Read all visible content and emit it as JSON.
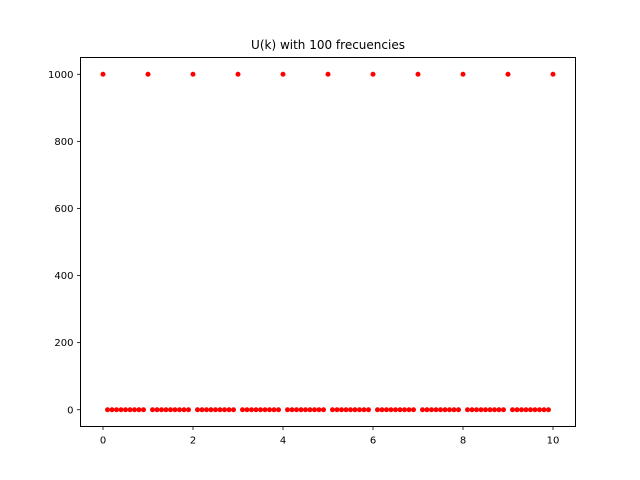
{
  "chart_data": {
    "type": "scatter",
    "title": "U(k) with 100 frecuencies",
    "xlabel": "",
    "ylabel": "",
    "xlim": [
      -0.5,
      10.5
    ],
    "ylim": [
      -50,
      1050
    ],
    "xticks": [
      0,
      2,
      4,
      6,
      8,
      10
    ],
    "yticks": [
      0,
      200,
      400,
      600,
      800,
      1000
    ],
    "grid": false,
    "marker_color": "#ff0000",
    "series": [
      {
        "x": [
          0.0,
          0.1,
          0.2,
          0.3,
          0.4,
          0.5,
          0.6,
          0.7,
          0.8,
          0.9,
          1.0,
          1.1,
          1.2,
          1.3,
          1.4,
          1.5,
          1.6,
          1.7,
          1.8,
          1.9,
          2.0,
          2.1,
          2.2,
          2.3,
          2.4,
          2.5,
          2.6,
          2.7,
          2.8,
          2.9,
          3.0,
          3.1,
          3.2,
          3.3,
          3.4,
          3.5,
          3.6,
          3.7,
          3.8,
          3.9,
          4.0,
          4.1,
          4.2,
          4.3,
          4.4,
          4.5,
          4.6,
          4.7,
          4.8,
          4.9,
          5.0,
          5.1,
          5.2,
          5.3,
          5.4,
          5.5,
          5.6,
          5.7,
          5.8,
          5.9,
          6.0,
          6.1,
          6.2,
          6.3,
          6.4,
          6.5,
          6.6,
          6.7,
          6.8,
          6.9,
          7.0,
          7.1,
          7.2,
          7.3,
          7.4,
          7.5,
          7.6,
          7.7,
          7.8,
          7.9,
          8.0,
          8.1,
          8.2,
          8.3,
          8.4,
          8.5,
          8.6,
          8.7,
          8.8,
          8.9,
          9.0,
          9.1,
          9.2,
          9.3,
          9.4,
          9.5,
          9.6,
          9.7,
          9.8,
          9.9,
          10.0
        ],
        "y": [
          1000,
          0,
          0,
          0,
          0,
          0,
          0,
          0,
          0,
          0,
          1000,
          0,
          0,
          0,
          0,
          0,
          0,
          0,
          0,
          0,
          1000,
          0,
          0,
          0,
          0,
          0,
          0,
          0,
          0,
          0,
          1000,
          0,
          0,
          0,
          0,
          0,
          0,
          0,
          0,
          0,
          1000,
          0,
          0,
          0,
          0,
          0,
          0,
          0,
          0,
          0,
          1000,
          0,
          0,
          0,
          0,
          0,
          0,
          0,
          0,
          0,
          1000,
          0,
          0,
          0,
          0,
          0,
          0,
          0,
          0,
          0,
          1000,
          0,
          0,
          0,
          0,
          0,
          0,
          0,
          0,
          0,
          1000,
          0,
          0,
          0,
          0,
          0,
          0,
          0,
          0,
          0,
          1000,
          0,
          0,
          0,
          0,
          0,
          0,
          0,
          0,
          0,
          1000
        ]
      }
    ]
  }
}
